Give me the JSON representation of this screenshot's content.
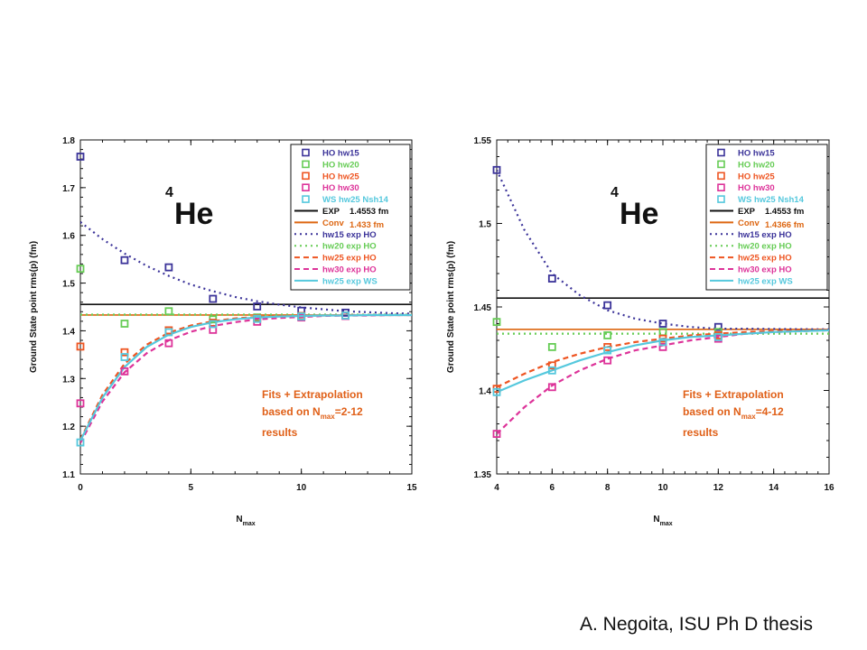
{
  "credit": "A. Negoita, ISU Ph D thesis",
  "chart_data": [
    {
      "type": "scatter",
      "nucleus_label": {
        "mass": "4",
        "symbol": "He"
      },
      "ylabel": "Ground State point rms(p) (fm)",
      "xlabel": {
        "base": "N",
        "sub": "max"
      },
      "xlim": [
        0,
        15
      ],
      "ylim": [
        1.1,
        1.8
      ],
      "xticks": [
        0,
        5,
        10,
        15
      ],
      "xtick_labels": [
        "0",
        "5",
        "10",
        "15"
      ],
      "yticks": [
        1.1,
        1.2,
        1.3,
        1.4,
        1.5,
        1.6,
        1.7,
        1.8
      ],
      "ytick_labels": [
        "1.1",
        "1.2",
        "1.3",
        "1.4",
        "1.5",
        "1.6",
        "1.7",
        "1.8"
      ],
      "annotation": {
        "line1": "Fits + Extrapolation",
        "line2_pre": "based on N",
        "line2_sub": "max",
        "line2_post": "=2-12",
        "line3": "results"
      },
      "legend_position": "top-right",
      "legend": [
        {
          "label": "HO hw15",
          "kind": "square",
          "color": "#3b3399"
        },
        {
          "label": "HO hw20",
          "kind": "square",
          "color": "#66cc55"
        },
        {
          "label": "HO hw25",
          "kind": "square",
          "color": "#ee5522"
        },
        {
          "label": "HO hw30",
          "kind": "square",
          "color": "#dd3399"
        },
        {
          "label": "WS hw25 Nsh14",
          "kind": "square",
          "color": "#55c8dd"
        },
        {
          "label": "EXP",
          "value": "1.4553 fm",
          "kind": "solid",
          "color": "#111111"
        },
        {
          "label": "Conv",
          "value": "1.433 fm",
          "kind": "solid",
          "color": "#dd6611"
        },
        {
          "label": "hw15 exp HO",
          "kind": "dotted",
          "color": "#3b3399"
        },
        {
          "label": "hw20 exp HO",
          "kind": "dotted",
          "color": "#66cc55"
        },
        {
          "label": "hw25 exp HO",
          "kind": "dashed",
          "color": "#ee5522"
        },
        {
          "label": "hw30 exp HO",
          "kind": "dashed",
          "color": "#dd3399"
        },
        {
          "label": "hw25 exp WS",
          "kind": "solid",
          "color": "#55c8dd"
        }
      ],
      "hlines": [
        {
          "name": "EXP",
          "y": 1.4553,
          "color": "#111111",
          "style": "solid"
        },
        {
          "name": "Conv",
          "y": 1.433,
          "color": "#dd6611",
          "style": "solid"
        },
        {
          "name": "hw20 conv",
          "y": 1.434,
          "color": "#66cc55",
          "style": "dotted"
        }
      ],
      "points": [
        {
          "name": "HO hw15",
          "color": "#3b3399",
          "x": [
            0,
            2,
            4,
            6,
            8,
            10,
            12
          ],
          "y": [
            1.765,
            1.548,
            1.533,
            1.467,
            1.451,
            1.442,
            1.438
          ]
        },
        {
          "name": "HO hw20",
          "color": "#66cc55",
          "x": [
            0,
            2,
            4,
            6,
            8,
            10,
            12
          ],
          "y": [
            1.53,
            1.415,
            1.441,
            1.424,
            1.428,
            1.431,
            1.432
          ]
        },
        {
          "name": "HO hw25",
          "color": "#ee5522",
          "x": [
            0,
            2,
            4,
            6,
            8,
            10,
            12
          ],
          "y": [
            1.367,
            1.355,
            1.401,
            1.417,
            1.426,
            1.431,
            1.432
          ]
        },
        {
          "name": "HO hw30",
          "color": "#dd3399",
          "x": [
            0,
            2,
            4,
            6,
            8,
            10,
            12
          ],
          "y": [
            1.248,
            1.315,
            1.374,
            1.402,
            1.419,
            1.428,
            1.431
          ]
        },
        {
          "name": "WS hw25 Nsh14",
          "color": "#55c8dd",
          "x": [
            0,
            2,
            4,
            6,
            8,
            10,
            12
          ],
          "y": [
            1.166,
            1.345,
            1.397,
            1.414,
            1.425,
            1.43,
            1.432
          ]
        }
      ],
      "curves": [
        {
          "name": "hw15 exp HO",
          "color": "#3b3399",
          "style": "dotted",
          "x": [
            0,
            1,
            2,
            3,
            4,
            5,
            6,
            7,
            8,
            9,
            10,
            11,
            12,
            13,
            14,
            15
          ],
          "y": [
            1.628,
            1.592,
            1.562,
            1.536,
            1.515,
            1.497,
            1.483,
            1.471,
            1.462,
            1.455,
            1.449,
            1.445,
            1.441,
            1.439,
            1.437,
            1.436
          ]
        },
        {
          "name": "hw20 exp HO",
          "color": "#66cc55",
          "style": "dotted",
          "x": [
            0,
            15
          ],
          "y": [
            1.434,
            1.434
          ]
        },
        {
          "name": "hw25 exp HO",
          "color": "#ee5522",
          "style": "dashed",
          "x": [
            0,
            1,
            2,
            3,
            4,
            5,
            6,
            7,
            8,
            9,
            10,
            11,
            12,
            13,
            14,
            15
          ],
          "y": [
            1.172,
            1.266,
            1.331,
            1.371,
            1.396,
            1.411,
            1.42,
            1.426,
            1.429,
            1.431,
            1.432,
            1.432,
            1.433,
            1.433,
            1.433,
            1.433
          ]
        },
        {
          "name": "hw30 exp HO",
          "color": "#dd3399",
          "style": "dashed",
          "x": [
            0,
            1,
            2,
            3,
            4,
            5,
            6,
            7,
            8,
            9,
            10,
            11,
            12,
            13,
            14,
            15
          ],
          "y": [
            1.165,
            1.252,
            1.313,
            1.353,
            1.38,
            1.398,
            1.41,
            1.418,
            1.424,
            1.427,
            1.429,
            1.431,
            1.432,
            1.432,
            1.433,
            1.433
          ]
        },
        {
          "name": "hw25 exp WS",
          "color": "#55c8dd",
          "style": "solid",
          "x": [
            0,
            1,
            2,
            3,
            4,
            5,
            6,
            7,
            8,
            9,
            10,
            11,
            12,
            13,
            14,
            15
          ],
          "y": [
            1.17,
            1.26,
            1.324,
            1.366,
            1.392,
            1.408,
            1.418,
            1.424,
            1.428,
            1.43,
            1.431,
            1.432,
            1.432,
            1.433,
            1.433,
            1.433
          ]
        }
      ]
    },
    {
      "type": "scatter",
      "nucleus_label": {
        "mass": "4",
        "symbol": "He"
      },
      "ylabel": "Ground State point rms(p) (fm)",
      "xlabel": {
        "base": "N",
        "sub": "max"
      },
      "xlim": [
        4,
        16
      ],
      "ylim": [
        1.35,
        1.55
      ],
      "xticks": [
        4,
        6,
        8,
        10,
        12,
        14,
        16
      ],
      "xtick_labels": [
        "4",
        "6",
        "8",
        "10",
        "12",
        "14",
        "16"
      ],
      "yticks": [
        1.35,
        1.4,
        1.45,
        1.5,
        1.55
      ],
      "ytick_labels": [
        "1.35",
        "1.4",
        "1.45",
        "1.5",
        "1.55"
      ],
      "annotation": {
        "line1": "Fits + Extrapolation",
        "line2_pre": "based on N",
        "line2_sub": "max",
        "line2_post": "=4-12",
        "line3": "results"
      },
      "legend_position": "top-right",
      "legend": [
        {
          "label": "HO hw15",
          "kind": "square",
          "color": "#3b3399"
        },
        {
          "label": "HO hw20",
          "kind": "square",
          "color": "#66cc55"
        },
        {
          "label": "HO hw25",
          "kind": "square",
          "color": "#ee5522"
        },
        {
          "label": "HO hw30",
          "kind": "square",
          "color": "#dd3399"
        },
        {
          "label": "WS hw25 Nsh14",
          "kind": "square",
          "color": "#55c8dd"
        },
        {
          "label": "EXP",
          "value": "1.4553 fm",
          "kind": "solid",
          "color": "#111111"
        },
        {
          "label": "Conv",
          "value": "1.4366 fm",
          "kind": "solid",
          "color": "#dd6611"
        },
        {
          "label": "hw15 exp HO",
          "kind": "dotted",
          "color": "#3b3399"
        },
        {
          "label": "hw20 exp HO",
          "kind": "dotted",
          "color": "#66cc55"
        },
        {
          "label": "hw25 exp HO",
          "kind": "dashed",
          "color": "#ee5522"
        },
        {
          "label": "hw30 exp HO",
          "kind": "dashed",
          "color": "#dd3399"
        },
        {
          "label": "hw25 exp WS",
          "kind": "solid",
          "color": "#55c8dd"
        }
      ],
      "hlines": [
        {
          "name": "EXP",
          "y": 1.4553,
          "color": "#111111",
          "style": "solid"
        },
        {
          "name": "Conv",
          "y": 1.4366,
          "color": "#dd6611",
          "style": "solid"
        },
        {
          "name": "hw20 conv",
          "y": 1.434,
          "color": "#66cc55",
          "style": "dotted"
        }
      ],
      "points": [
        {
          "name": "HO hw15",
          "color": "#3b3399",
          "x": [
            4,
            6,
            8,
            10,
            12
          ],
          "y": [
            1.532,
            1.467,
            1.451,
            1.44,
            1.438
          ]
        },
        {
          "name": "HO hw20",
          "color": "#66cc55",
          "x": [
            4,
            6,
            8,
            10,
            12
          ],
          "y": [
            1.441,
            1.426,
            1.433,
            1.435,
            1.435
          ]
        },
        {
          "name": "HO hw25",
          "color": "#ee5522",
          "x": [
            4,
            6,
            8,
            10,
            12
          ],
          "y": [
            1.401,
            1.415,
            1.426,
            1.431,
            1.433
          ]
        },
        {
          "name": "HO hw30",
          "color": "#dd3399",
          "x": [
            4,
            6,
            8,
            10,
            12
          ],
          "y": [
            1.374,
            1.402,
            1.418,
            1.426,
            1.431
          ]
        },
        {
          "name": "WS hw25 Nsh14",
          "color": "#55c8dd",
          "x": [
            4,
            6,
            8,
            10,
            12
          ],
          "y": [
            1.399,
            1.412,
            1.424,
            1.429,
            1.432
          ]
        }
      ],
      "curves": [
        {
          "name": "hw15 exp HO",
          "color": "#3b3399",
          "style": "dotted",
          "x": [
            4,
            5,
            6,
            7,
            8,
            9,
            10,
            11,
            12,
            13,
            14,
            15,
            16
          ],
          "y": [
            1.532,
            1.496,
            1.47,
            1.457,
            1.448,
            1.443,
            1.44,
            1.438,
            1.437,
            1.437,
            1.4368,
            1.4367,
            1.4366
          ]
        },
        {
          "name": "hw20 exp HO",
          "color": "#66cc55",
          "style": "dotted",
          "x": [
            4,
            16
          ],
          "y": [
            1.434,
            1.434
          ]
        },
        {
          "name": "hw25 exp HO",
          "color": "#ee5522",
          "style": "dashed",
          "x": [
            4,
            5,
            6,
            7,
            8,
            9,
            10,
            11,
            12,
            13,
            14,
            15,
            16
          ],
          "y": [
            1.402,
            1.41,
            1.417,
            1.422,
            1.426,
            1.429,
            1.431,
            1.433,
            1.434,
            1.435,
            1.4355,
            1.436,
            1.4363
          ]
        },
        {
          "name": "hw30 exp HO",
          "color": "#dd3399",
          "style": "dashed",
          "x": [
            4,
            5,
            6,
            7,
            8,
            9,
            10,
            11,
            12,
            13,
            14,
            15,
            16
          ],
          "y": [
            1.374,
            1.39,
            1.403,
            1.412,
            1.419,
            1.424,
            1.427,
            1.43,
            1.432,
            1.434,
            1.435,
            1.4355,
            1.436
          ]
        },
        {
          "name": "hw25 exp WS",
          "color": "#55c8dd",
          "style": "solid",
          "x": [
            4,
            5,
            6,
            7,
            8,
            9,
            10,
            11,
            12,
            13,
            14,
            15,
            16
          ],
          "y": [
            1.399,
            1.406,
            1.412,
            1.418,
            1.423,
            1.427,
            1.43,
            1.432,
            1.433,
            1.434,
            1.435,
            1.4355,
            1.436
          ]
        }
      ]
    }
  ]
}
